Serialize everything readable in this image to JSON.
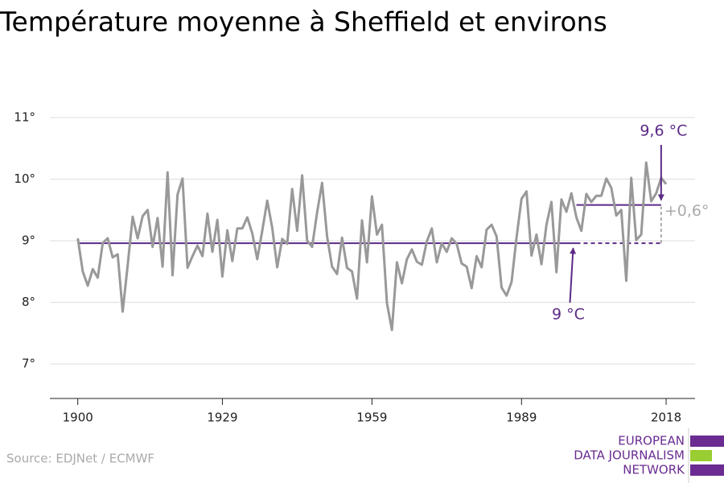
{
  "chart_data": {
    "type": "line",
    "title": "Température moyenne à Sheffield et environs",
    "source": "Source: EDJNet / ECMWF",
    "color": "#999999",
    "x": [
      1900,
      1901,
      1902,
      1903,
      1904,
      1905,
      1906,
      1907,
      1908,
      1909,
      1910,
      1911,
      1912,
      1913,
      1914,
      1915,
      1916,
      1917,
      1918,
      1919,
      1920,
      1921,
      1922,
      1923,
      1924,
      1925,
      1926,
      1927,
      1928,
      1929,
      1930,
      1931,
      1932,
      1933,
      1934,
      1935,
      1936,
      1937,
      1938,
      1939,
      1940,
      1941,
      1942,
      1943,
      1944,
      1945,
      1946,
      1947,
      1948,
      1949,
      1950,
      1951,
      1952,
      1953,
      1954,
      1955,
      1956,
      1957,
      1958,
      1959,
      1960,
      1961,
      1962,
      1963,
      1964,
      1965,
      1966,
      1967,
      1968,
      1969,
      1970,
      1971,
      1972,
      1973,
      1974,
      1975,
      1976,
      1977,
      1978,
      1979,
      1980,
      1981,
      1982,
      1983,
      1984,
      1985,
      1986,
      1987,
      1988,
      1989,
      1990,
      1991,
      1992,
      1993,
      1994,
      1995,
      1996,
      1997,
      1998,
      1999,
      2000,
      2001,
      2002,
      2003,
      2004,
      2005,
      2006,
      2007,
      2008,
      2009,
      2010,
      2011,
      2012,
      2013,
      2014,
      2015,
      2016,
      2017,
      2018
    ],
    "values": [
      9.04,
      8.5,
      8.27,
      8.54,
      8.4,
      8.96,
      9.04,
      8.73,
      8.78,
      7.85,
      8.6,
      9.39,
      9.04,
      9.4,
      9.5,
      8.9,
      9.37,
      8.58,
      10.11,
      8.44,
      9.75,
      10.01,
      8.56,
      8.75,
      8.92,
      8.75,
      9.44,
      8.82,
      9.34,
      8.42,
      9.17,
      8.67,
      9.2,
      9.2,
      9.38,
      9.12,
      8.7,
      9.16,
      9.65,
      9.21,
      8.57,
      9.03,
      8.95,
      9.84,
      9.16,
      10.06,
      9.0,
      8.9,
      9.46,
      9.94,
      9.07,
      8.58,
      8.46,
      9.05,
      8.56,
      8.5,
      8.06,
      9.33,
      8.65,
      9.72,
      9.1,
      9.26,
      7.99,
      7.55,
      8.65,
      8.31,
      8.7,
      8.86,
      8.66,
      8.61,
      8.99,
      9.2,
      8.65,
      8.96,
      8.82,
      9.04,
      8.95,
      8.63,
      8.58,
      8.23,
      8.75,
      8.57,
      9.18,
      9.26,
      9.07,
      8.24,
      8.11,
      8.33,
      9.05,
      9.68,
      9.8,
      8.76,
      9.1,
      8.62,
      9.26,
      9.63,
      8.49,
      9.67,
      9.47,
      9.77,
      9.38,
      9.16,
      9.76,
      9.63,
      9.73,
      9.73,
      10.01,
      9.86,
      9.41,
      9.5,
      8.35,
      10.02,
      9.01,
      9.1,
      10.27,
      9.64,
      9.77,
      10.02,
      9.92
    ],
    "xlim": [
      1894.4,
      2023.8
    ],
    "xticks": [
      1900,
      1929,
      1959,
      1989,
      2018
    ],
    "ylim": [
      6.44,
      11.2
    ],
    "yticks": [
      {
        "value": 7,
        "label": "7°"
      },
      {
        "value": 8,
        "label": "8°"
      },
      {
        "value": 9,
        "label": "9°"
      },
      {
        "value": 10,
        "label": "10°"
      },
      {
        "value": 11,
        "label": "11°"
      }
    ],
    "grid": true,
    "reference_lines": [
      {
        "value": 8.96,
        "label": "9 °C",
        "from": 1900,
        "to": 2017,
        "solid_to": 2000,
        "color": "#5b2a86"
      },
      {
        "value": 9.58,
        "label": "9,6 °C",
        "from": 2000,
        "to": 2017,
        "color": "#5b2a86"
      }
    ],
    "difference": {
      "label": "+0,6°",
      "x": 2017,
      "color": "#aaaaaa"
    },
    "logo": {
      "lines": [
        "EUROPEAN",
        "DATA JOURNALISM",
        "NETWORK"
      ],
      "colors": [
        "#6a2c91",
        "#9acd32",
        "#6a2c91"
      ]
    }
  }
}
